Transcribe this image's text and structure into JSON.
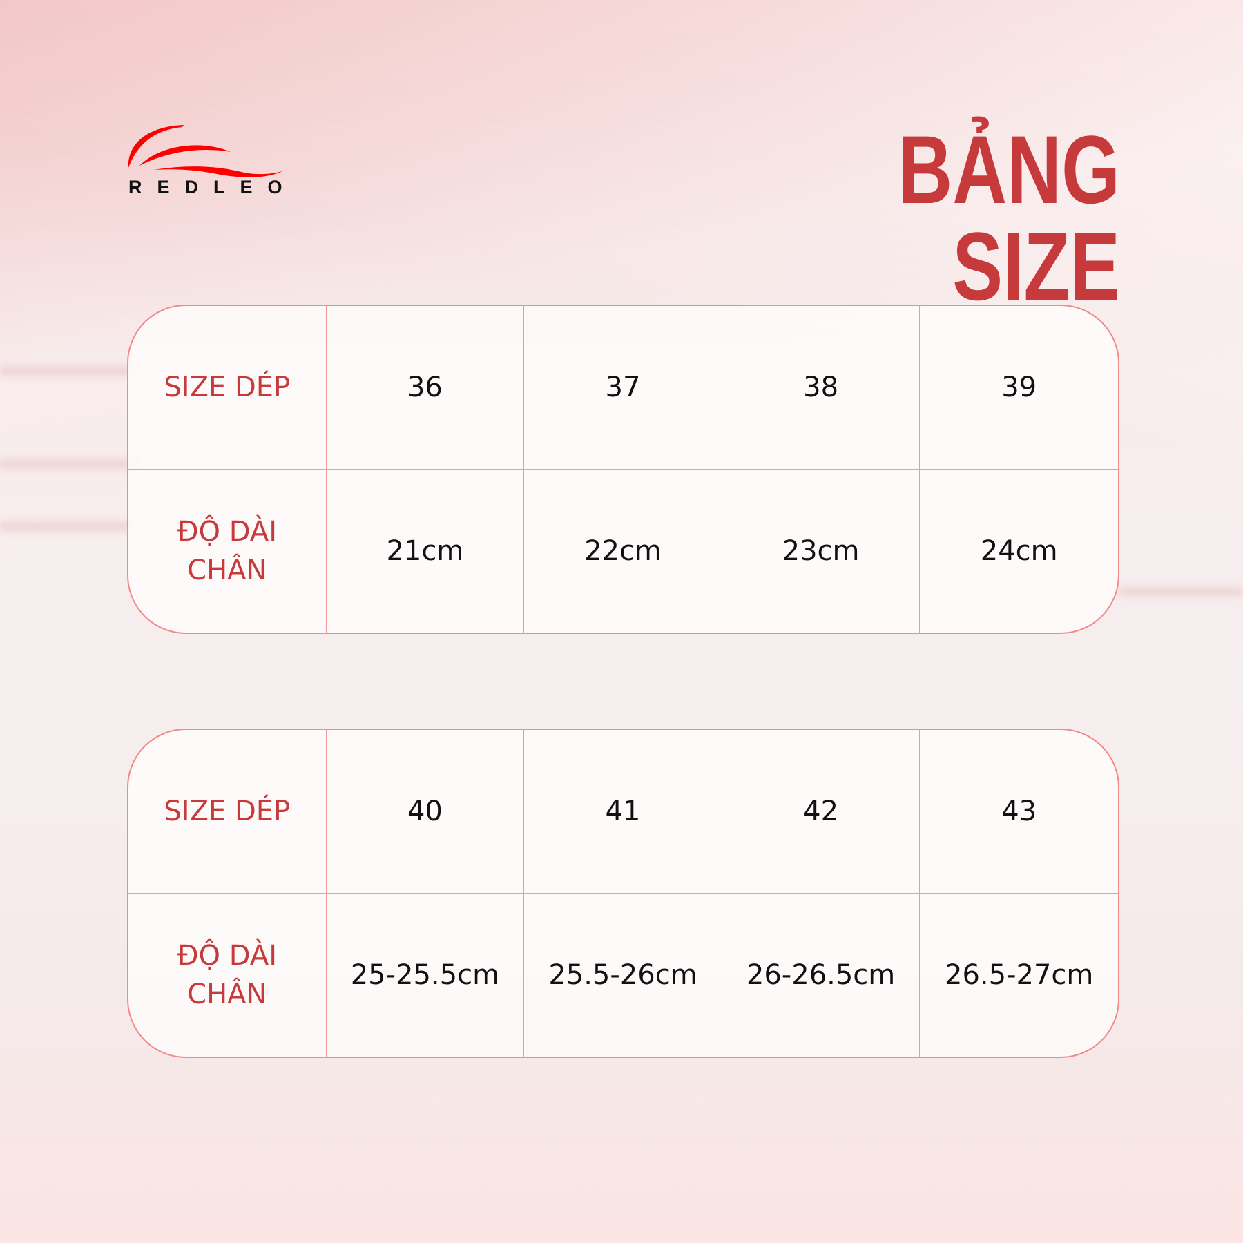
{
  "brand": {
    "name": "REDLEO",
    "logo_color": "#ff0000"
  },
  "title": "BẢNG SIZE",
  "colors": {
    "accent": "#c63a3c",
    "border": "#f28a8a"
  },
  "tables": [
    {
      "row_labels": {
        "size": "SIZE DÉP",
        "length_line1": "ĐỘ DÀI",
        "length_line2": "CHÂN"
      },
      "sizes": [
        "36",
        "37",
        "38",
        "39"
      ],
      "lengths": [
        "21cm",
        "22cm",
        "23cm",
        "24cm"
      ]
    },
    {
      "row_labels": {
        "size": "SIZE DÉP",
        "length_line1": "ĐỘ DÀI",
        "length_line2": "CHÂN"
      },
      "sizes": [
        "40",
        "41",
        "42",
        "43"
      ],
      "lengths": [
        "25-25.5cm",
        "25.5-26cm",
        "26-26.5cm",
        "26.5-27cm"
      ]
    }
  ]
}
